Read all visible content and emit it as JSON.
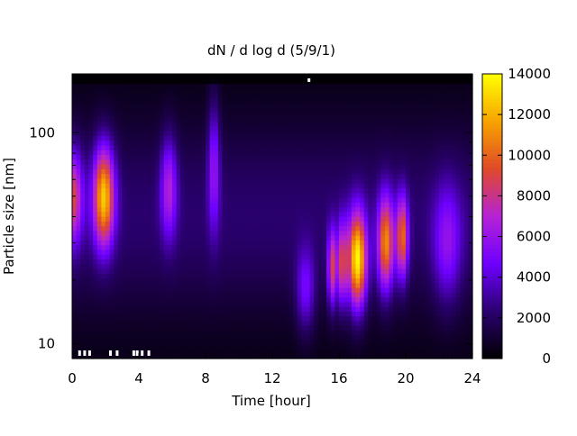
{
  "chart_data": {
    "type": "heatmap",
    "title": "dN / d log d (5/9/1)",
    "xlabel": "Time [hour]",
    "ylabel": "Particle size [nm]",
    "xlim": [
      0,
      24
    ],
    "x_ticks": [
      0,
      4,
      8,
      12,
      16,
      20,
      24
    ],
    "y_scale": "log",
    "ylim": [
      8.5,
      190
    ],
    "y_tick_labels": [
      {
        "value": 10,
        "label": "10"
      },
      {
        "value": 100,
        "label": "100"
      }
    ],
    "colorbar": {
      "range": [
        0,
        14000
      ],
      "ticks": [
        0,
        2000,
        4000,
        6000,
        8000,
        10000,
        12000,
        14000
      ],
      "colormap": [
        "#000000",
        "#2a006e",
        "#6e00ff",
        "#b522d6",
        "#e0492a",
        "#f7a200",
        "#ffff00"
      ]
    },
    "background_level": 2000,
    "size_distribution_modes": [
      {
        "time_h": 0.0,
        "time_width_h": 0.45,
        "diameter_nm": 50,
        "log_width": 0.16,
        "peak": 7000
      },
      {
        "time_h": 1.9,
        "time_width_h": 0.45,
        "diameter_nm": 50,
        "log_width": 0.17,
        "peak": 10500
      },
      {
        "time_h": 5.8,
        "time_width_h": 0.35,
        "diameter_nm": 55,
        "log_width": 0.17,
        "peak": 4800
      },
      {
        "time_h": 8.5,
        "time_width_h": 0.25,
        "diameter_nm": 70,
        "log_width": 0.22,
        "peak": 4200
      },
      {
        "time_h": 14.0,
        "time_width_h": 0.4,
        "diameter_nm": 18,
        "log_width": 0.14,
        "peak": 3600
      },
      {
        "time_h": 15.6,
        "time_width_h": 0.2,
        "diameter_nm": 23,
        "log_width": 0.13,
        "peak": 7000
      },
      {
        "time_h": 16.2,
        "time_width_h": 0.2,
        "diameter_nm": 24,
        "log_width": 0.14,
        "peak": 6500
      },
      {
        "time_h": 17.1,
        "time_width_h": 0.4,
        "diameter_nm": 25,
        "log_width": 0.16,
        "peak": 12000
      },
      {
        "time_h": 18.8,
        "time_width_h": 0.35,
        "diameter_nm": 30,
        "log_width": 0.16,
        "peak": 9000
      },
      {
        "time_h": 19.8,
        "time_width_h": 0.25,
        "diameter_nm": 32,
        "log_width": 0.14,
        "peak": 8000
      },
      {
        "time_h": 22.5,
        "time_width_h": 0.6,
        "diameter_nm": 30,
        "log_width": 0.2,
        "peak": 3800
      }
    ],
    "missing_data_hours": [
      0.45,
      0.75,
      1.05,
      2.3,
      2.7,
      3.7,
      3.9,
      4.2,
      4.6,
      14.2
    ]
  }
}
